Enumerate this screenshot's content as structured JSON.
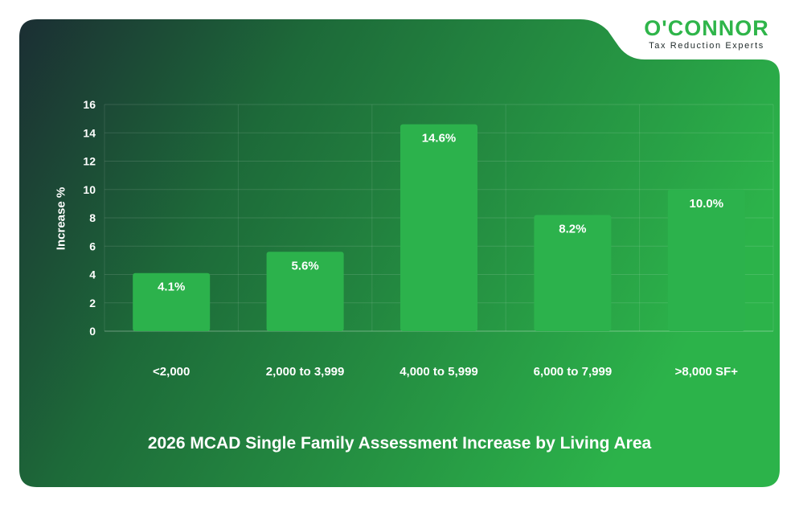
{
  "logo": {
    "name": "O'CONNOR",
    "tagline": "Tax Reduction Experts"
  },
  "colors": {
    "bar": "#2cb24c",
    "background_dark": "#1b2e33",
    "background_light": "#2db34a",
    "text": "#ffffff",
    "grid": "#ffffff"
  },
  "chart_data": {
    "type": "bar",
    "title": "2026 MCAD Single Family Assessment Increase by Living Area",
    "xlabel": "",
    "ylabel": "Increase %",
    "categories": [
      "<2,000",
      "2,000 to 3,999",
      "4,000 to 5,999",
      "6,000 to 7,999",
      ">8,000 SF+"
    ],
    "values": [
      4.1,
      5.6,
      14.6,
      8.2,
      10.0
    ],
    "data_labels": [
      "4.1%",
      "5.6%",
      "14.6%",
      "8.2%",
      "10.0%"
    ],
    "ylim": [
      0,
      16
    ],
    "yticks": [
      "0",
      "2",
      "4",
      "6",
      "8",
      "10",
      "12",
      "14",
      "16"
    ],
    "grid": true,
    "legend": "none"
  }
}
